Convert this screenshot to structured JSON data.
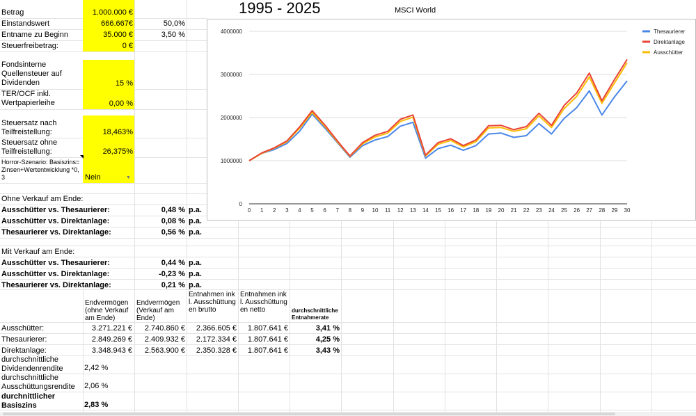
{
  "top_labels": {
    "betrag": "Betrag",
    "einstandswert": "Einstandswert",
    "entname": "Entname zu Beginn",
    "steuerfreibetrag": "Steuerfreibetrag:",
    "quellensteuer": "Fondsinterne Quellensteuer auf Dividenden",
    "ter": "TER/OCF inkl. Wertpapierleihe",
    "steuer_mit": "Steuersatz nach Teilfreistellung:",
    "steuer_ohne": "Steuersatz ohne Teilfreistellung:",
    "horror": "Horror-Szenario: Basiszins=Zinsen+Wertentwicklung *0,3"
  },
  "top_values": {
    "betrag": "1.000.000 €",
    "einstandswert": "666.667€",
    "einstandswert_pct": "50,0%",
    "entname": "35.000 €",
    "entname_pct": "3,50 %",
    "steuerfreibetrag": "0 €",
    "quellensteuer": "15 %",
    "ter": "0,00 %",
    "steuer_mit": "18,463%",
    "steuer_ohne": "26,375%",
    "horror": "Nein"
  },
  "ohne": {
    "heading": "Ohne Verkauf am Ende:",
    "rows": [
      {
        "label": "Ausschütter vs. Thesaurierer:",
        "value": "0,48 %",
        "unit": "p.a."
      },
      {
        "label": "Ausschütter vs. Direktanlage:",
        "value": "0,08 %",
        "unit": "p.a."
      },
      {
        "label": "Thesaurierer vs. Direktanlage:",
        "value": "0,56 %",
        "unit": "p.a."
      }
    ]
  },
  "mit": {
    "heading": "Mit Verkauf am Ende:",
    "rows": [
      {
        "label": "Ausschütter vs. Thesaurierer:",
        "value": "0,44 %",
        "unit": "p.a."
      },
      {
        "label": "Ausschütter vs. Direktanlage:",
        "value": "-0,23 %",
        "unit": "p.a."
      },
      {
        "label": "Thesaurierer vs. Direktanlage:",
        "value": "0,21 %",
        "unit": "p.a."
      }
    ]
  },
  "table": {
    "headers": [
      "Endvermögen (ohne Verkauf am Ende)",
      "Endvermögen (Verkauf am Ende)",
      "Entnahmen inkl. Ausschüttungen brutto",
      "Entnahmen inkl. Ausschüttungen netto",
      "durchschnittliche Entnahmerate"
    ],
    "rows": [
      {
        "label": "Ausschütter:",
        "cells": [
          "3.271.221 €",
          "2.740.860 €",
          "2.366.605 €",
          "1.807.641 €",
          "3,41 %"
        ]
      },
      {
        "label": "Thesaurierer:",
        "cells": [
          "2.849.269 €",
          "2.409.932 €",
          "2.172.334 €",
          "1.807.641 €",
          "4,25 %"
        ]
      },
      {
        "label": "Direktanlage:",
        "cells": [
          "3.348.943 €",
          "2.563.900 €",
          "2.350.328 €",
          "1.807.641 €",
          "3,43 %"
        ]
      }
    ]
  },
  "bottom": {
    "div_label": "durchschnittliche Dividendenrendite",
    "div_value": "2,42 %",
    "aus_label": "durchschnittliche Ausschüttungsrendite",
    "aus_value": "2,06 %",
    "basis_label": "durchnittlicher Basiszins",
    "basis_value": "2,83 %"
  },
  "title_range": "1995 - 2025",
  "chart_data": {
    "type": "line",
    "title": "MSCI World",
    "x": [
      0,
      1,
      2,
      3,
      4,
      5,
      6,
      7,
      8,
      9,
      10,
      11,
      12,
      13,
      14,
      15,
      16,
      17,
      18,
      19,
      20,
      21,
      22,
      23,
      24,
      25,
      26,
      27,
      28,
      29,
      30
    ],
    "ylim": [
      0,
      4000000
    ],
    "yticks": [
      "0",
      "1000000",
      "2000000",
      "3000000",
      "4000000"
    ],
    "legend_position": "top-right",
    "series": [
      {
        "name": "Thesaurierer",
        "color": "#4a86e8",
        "values": [
          1000000,
          1170000,
          1260000,
          1400000,
          1680000,
          2080000,
          1760000,
          1420000,
          1080000,
          1350000,
          1480000,
          1560000,
          1800000,
          1890000,
          1060000,
          1280000,
          1360000,
          1240000,
          1350000,
          1620000,
          1640000,
          1540000,
          1580000,
          1860000,
          1620000,
          1980000,
          2230000,
          2620000,
          2060000,
          2480000,
          2849269
        ]
      },
      {
        "name": "Direktanlage",
        "color": "#ea4335",
        "values": [
          1000000,
          1180000,
          1300000,
          1460000,
          1780000,
          2160000,
          1830000,
          1460000,
          1110000,
          1420000,
          1590000,
          1680000,
          1960000,
          2060000,
          1130000,
          1420000,
          1510000,
          1350000,
          1480000,
          1810000,
          1820000,
          1720000,
          1790000,
          2100000,
          1820000,
          2280000,
          2570000,
          3030000,
          2390000,
          2880000,
          3348943
        ]
      },
      {
        "name": "Ausschütter",
        "color": "#fbbc04",
        "values": [
          1000000,
          1170000,
          1290000,
          1440000,
          1750000,
          2120000,
          1800000,
          1440000,
          1100000,
          1390000,
          1550000,
          1640000,
          1910000,
          2010000,
          1110000,
          1380000,
          1470000,
          1320000,
          1440000,
          1760000,
          1770000,
          1680000,
          1740000,
          2040000,
          1770000,
          2210000,
          2490000,
          2940000,
          2330000,
          2800000,
          3271221
        ]
      }
    ]
  }
}
